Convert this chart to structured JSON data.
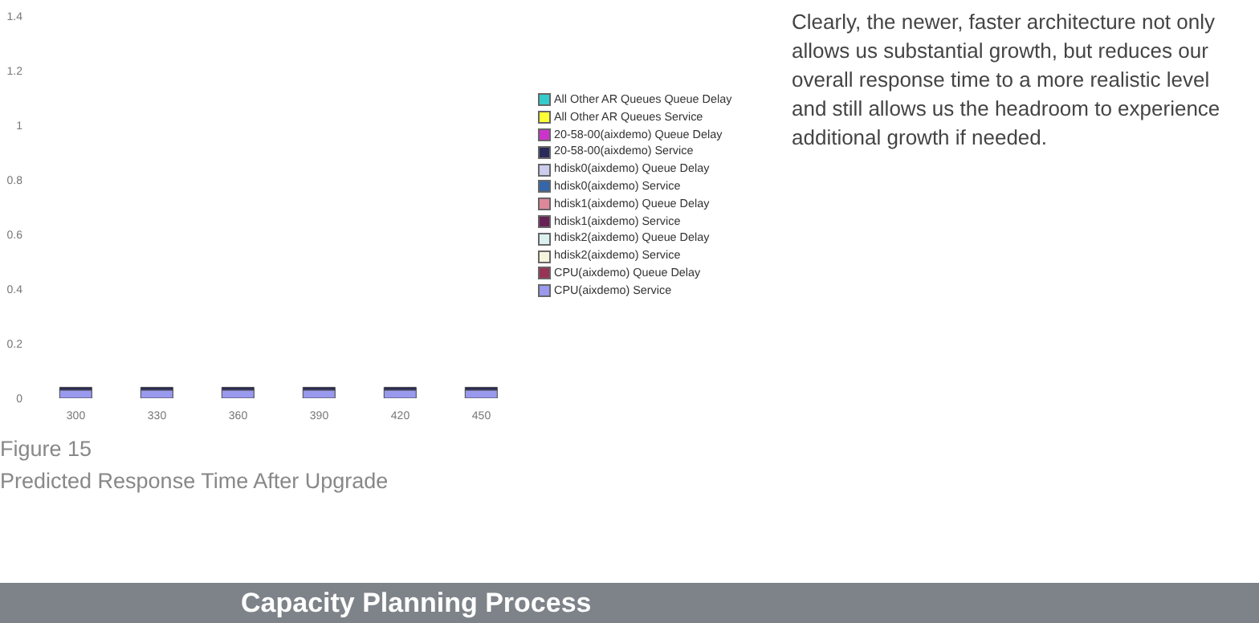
{
  "chart_data": {
    "type": "bar",
    "stacked": true,
    "subtitle": "Figure 15\nPredicted Response Time After Upgrade",
    "categories": [
      "300",
      "330",
      "360",
      "390",
      "420",
      "450"
    ],
    "series": [
      {
        "name": "CPU(aixdemo) Service",
        "color": "#9999ee",
        "values": [
          0.03,
          0.03,
          0.03,
          0.03,
          0.03,
          0.03
        ]
      },
      {
        "name": "CPU(aixdemo) Queue Delay",
        "color": "#993355",
        "values": [
          0,
          0,
          0,
          0,
          0,
          0
        ]
      },
      {
        "name": "hdisk2(aixdemo) Service",
        "color": "#f5f5dd",
        "values": [
          0,
          0,
          0,
          0,
          0,
          0
        ]
      },
      {
        "name": "hdisk2(aixdemo) Queue Delay",
        "color": "#ddf0f0",
        "values": [
          0,
          0,
          0,
          0,
          0,
          0
        ]
      },
      {
        "name": "hdisk1(aixdemo) Service",
        "color": "#662255",
        "values": [
          0,
          0,
          0,
          0,
          0,
          0
        ]
      },
      {
        "name": "hdisk1(aixdemo) Queue Delay",
        "color": "#dd8899",
        "values": [
          0,
          0,
          0,
          0,
          0,
          0
        ]
      },
      {
        "name": "hdisk0(aixdemo) Service",
        "color": "#3366aa",
        "values": [
          0,
          0,
          0,
          0,
          0,
          0
        ]
      },
      {
        "name": "hdisk0(aixdemo) Queue Delay",
        "color": "#ccccee",
        "values": [
          0,
          0,
          0,
          0,
          0,
          0
        ]
      },
      {
        "name": "20-58-00(aixdemo) Service",
        "color": "#2a2a5a",
        "values": [
          0.01,
          0.01,
          0.01,
          0.01,
          0.01,
          0.01
        ]
      },
      {
        "name": "20-58-00(aixdemo) Queue Delay",
        "color": "#cc33cc",
        "values": [
          0,
          0,
          0,
          0,
          0,
          0
        ]
      },
      {
        "name": "All Other AR Queues Service",
        "color": "#ffff33",
        "values": [
          0,
          0,
          0,
          0,
          0,
          0
        ]
      },
      {
        "name": "All Other AR Queues Queue Delay",
        "color": "#33cccc",
        "values": [
          0,
          0,
          0,
          0,
          0,
          0
        ]
      }
    ],
    "ylim": [
      0,
      1.4
    ],
    "yticks": [
      0,
      0.2,
      0.4,
      0.6,
      0.8,
      1,
      1.2,
      1.4
    ],
    "grid": false,
    "legend": "right",
    "annotations": [
      "Clearly, the newer, faster architecture not only allows us substantial growth, but reduces our overall response time to a more realistic level and still allows us the headroom to experience additional growth if needed.",
      "Capacity Planning Process"
    ]
  }
}
